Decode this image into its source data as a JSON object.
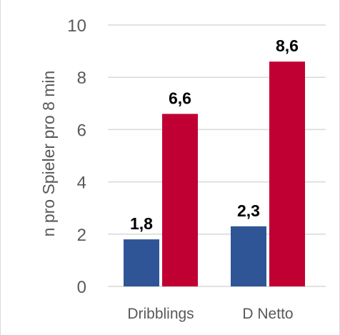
{
  "chart_data": {
    "type": "bar",
    "title": "",
    "xlabel": "",
    "ylabel": "n pro Spieler pro 8 min",
    "ylim": [
      0,
      10
    ],
    "yticks": [
      0,
      2,
      4,
      6,
      8,
      10
    ],
    "grid": true,
    "legend": "none",
    "categories": [
      "Dribblings",
      "D Netto"
    ],
    "series": [
      {
        "values": [
          1.8,
          2.3
        ],
        "labels": [
          "1,8",
          "2,3"
        ],
        "color": "#2f5597"
      },
      {
        "values": [
          6.6,
          8.6
        ],
        "labels": [
          "6,6",
          "8,6"
        ],
        "color": "#c00033"
      }
    ]
  }
}
